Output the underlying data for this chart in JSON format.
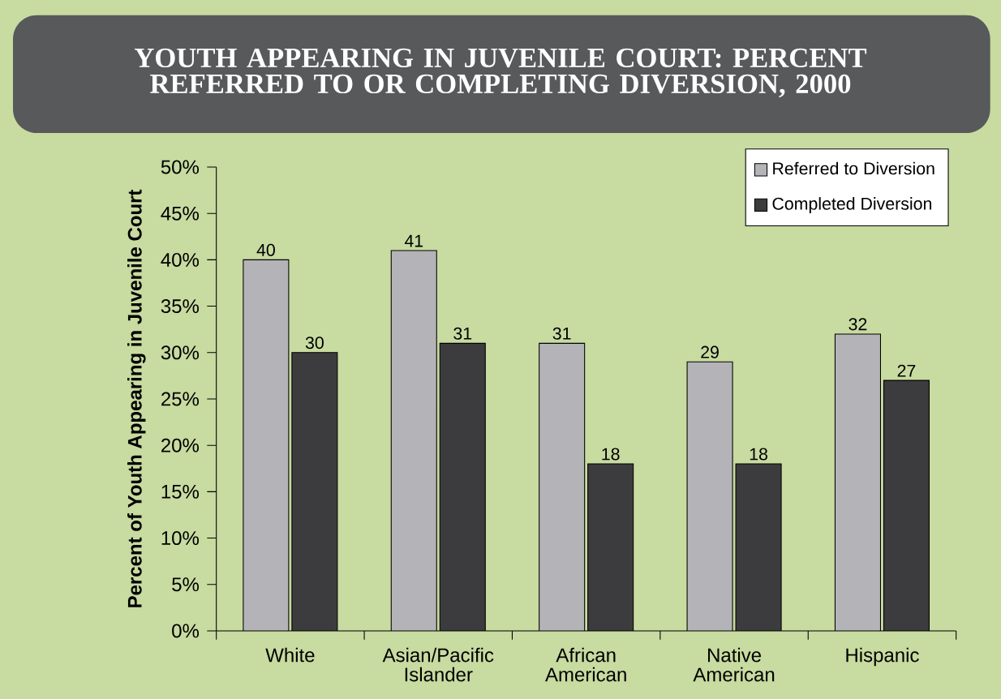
{
  "chart_data": {
    "type": "bar",
    "title": "YOUTH APPEARING IN JUVENILE COURT:  PERCENT REFERRED TO OR COMPLETING DIVERSION, 2000",
    "ylabel": "Percent of Youth Appearing in Juvenile Court",
    "categories": [
      "White",
      "Asian/Pacific Islander",
      "African American",
      "Native American",
      "Hispanic"
    ],
    "series": [
      {
        "name": "Referred to Diversion",
        "color": "#b4b4b8",
        "values": [
          40,
          41,
          31,
          29,
          32
        ]
      },
      {
        "name": "Completed Diversion",
        "color": "#3c3c3e",
        "values": [
          30,
          31,
          18,
          18,
          27
        ]
      }
    ],
    "ylim": [
      0,
      50
    ],
    "yticks": [
      {
        "value": 0,
        "label": "0%"
      },
      {
        "value": 5,
        "label": "5%"
      },
      {
        "value": 10,
        "label": "10%"
      },
      {
        "value": 15,
        "label": "15%"
      },
      {
        "value": 20,
        "label": "20%"
      },
      {
        "value": 25,
        "label": "25%"
      },
      {
        "value": 30,
        "label": "30%"
      },
      {
        "value": 35,
        "label": "35%"
      },
      {
        "value": 40,
        "label": "40%"
      },
      {
        "value": 45,
        "label": "45%"
      },
      {
        "value": 50,
        "label": "50%"
      }
    ],
    "data_labels": true,
    "legend": "top right",
    "grid": false
  }
}
